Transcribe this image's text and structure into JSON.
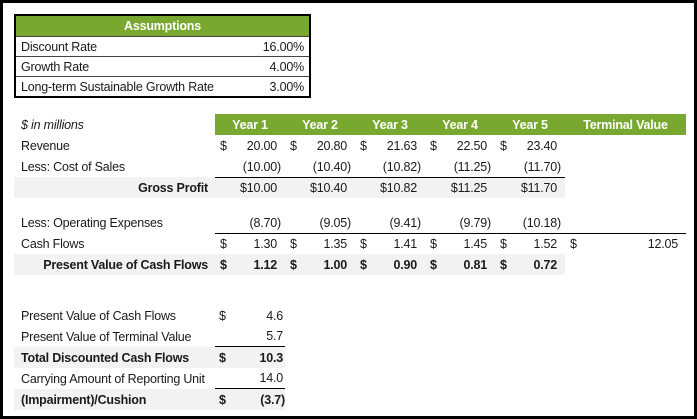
{
  "colors": {
    "accent_green": "#78A82F",
    "row_highlight": "#F2F2F2",
    "border": "#000000"
  },
  "dollar_sign": "$",
  "assumptions": {
    "title": "Assumptions",
    "rows": [
      {
        "label": "Discount Rate",
        "value": "16.00%"
      },
      {
        "label": "Growth Rate",
        "value": "4.00%"
      },
      {
        "label": "Long-term Sustainable Growth Rate",
        "value": "3.00%"
      }
    ]
  },
  "model": {
    "unit_note": "$ in millions",
    "columns": [
      "Year 1",
      "Year 2",
      "Year 3",
      "Year 4",
      "Year 5",
      "Terminal Value"
    ],
    "revenue": {
      "label": "Revenue",
      "values": [
        "20.00",
        "20.80",
        "21.63",
        "22.50",
        "23.40"
      ]
    },
    "cost_of_sales": {
      "label": "Less: Cost of Sales",
      "values": [
        "(10.00)",
        "(10.40)",
        "(10.82)",
        "(11.25)",
        "(11.70)"
      ]
    },
    "gross_profit": {
      "label": "Gross Profit",
      "values": [
        "$10.00",
        "$10.40",
        "$10.82",
        "$11.25",
        "$11.70"
      ]
    },
    "operating_expenses": {
      "label": "Less: Operating Expenses",
      "values": [
        "(8.70)",
        "(9.05)",
        "(9.41)",
        "(9.79)",
        "(10.18)"
      ]
    },
    "cash_flows": {
      "label": "Cash Flows",
      "values": [
        "1.30",
        "1.35",
        "1.41",
        "1.45",
        "1.52"
      ],
      "terminal_value": "12.05"
    },
    "pv_cash_flows": {
      "label": "Present Value of Cash Flows",
      "values": [
        "1.12",
        "1.00",
        "0.90",
        "0.81",
        "0.72"
      ]
    }
  },
  "summary": {
    "rows": [
      {
        "label": "Present Value of Cash Flows",
        "currency": "$",
        "value": "4.6"
      },
      {
        "label": "Present Value of Terminal Value",
        "currency": "",
        "value": "5.7"
      },
      {
        "label": "Total Discounted Cash Flows",
        "currency": "$",
        "value": "10.3"
      },
      {
        "label": "Carrying Amount of Reporting Unit",
        "currency": "",
        "value": "14.0"
      },
      {
        "label": "(Impairment)/Cushion",
        "currency": "$",
        "value": "(3.7)"
      }
    ]
  }
}
